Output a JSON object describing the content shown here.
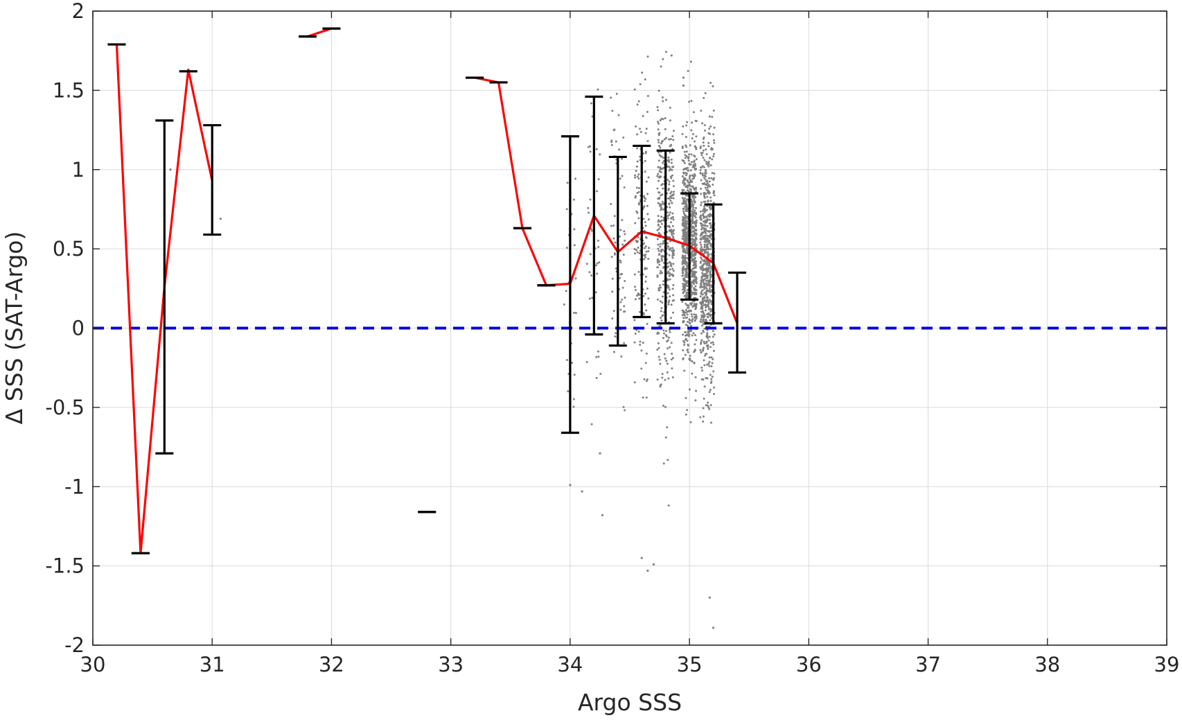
{
  "chart_data": {
    "type": "scatter",
    "xlabel": "Argo SSS",
    "ylabel": "Δ SSS (SAT-Argo)",
    "xlim": [
      30,
      39
    ],
    "ylim": [
      -2,
      2
    ],
    "xticks": [
      30,
      31,
      32,
      33,
      34,
      35,
      36,
      37,
      38,
      39
    ],
    "yticks": [
      -2,
      -1.5,
      -1,
      -0.5,
      0,
      0.5,
      1,
      1.5,
      2
    ],
    "xtick_labels": [
      "30",
      "31",
      "32",
      "33",
      "34",
      "35",
      "36",
      "37",
      "38",
      "39"
    ],
    "ytick_labels": [
      "-2",
      "-1.5",
      "-1",
      "-0.5",
      "0",
      "0.5",
      "1",
      "1.5",
      "2"
    ],
    "grid": true,
    "reference_line": {
      "y": 0,
      "style": "dashed",
      "color": "#0000dd"
    },
    "colors": {
      "mean_line": "#ff0000",
      "errorbar": "#000000",
      "scatter": "#808080",
      "grid": "#d9d9d9",
      "axes": "#262626"
    },
    "mean_line": [
      {
        "x": 30.2,
        "y": 1.79
      },
      {
        "x": 30.4,
        "y": -1.42
      },
      {
        "x": 30.6,
        "y": 0.26
      },
      {
        "x": 30.8,
        "y": 1.63
      },
      {
        "x": 31.0,
        "y": 0.93
      },
      null,
      {
        "x": 31.8,
        "y": 1.84
      },
      {
        "x": 32.0,
        "y": 1.89
      },
      null,
      {
        "x": 33.2,
        "y": 1.58
      },
      {
        "x": 33.4,
        "y": 1.55
      },
      {
        "x": 33.6,
        "y": 0.63
      },
      {
        "x": 33.8,
        "y": 0.27
      },
      {
        "x": 34.0,
        "y": 0.28
      },
      {
        "x": 34.2,
        "y": 0.71
      },
      {
        "x": 34.4,
        "y": 0.48
      },
      {
        "x": 34.6,
        "y": 0.61
      },
      {
        "x": 34.8,
        "y": 0.57
      },
      {
        "x": 35.0,
        "y": 0.52
      },
      {
        "x": 35.2,
        "y": 0.41
      },
      {
        "x": 35.4,
        "y": 0.03
      }
    ],
    "error_bars": [
      {
        "x": 30.2,
        "low": 1.79,
        "high": 1.79
      },
      {
        "x": 30.4,
        "low": -1.42,
        "high": -1.42
      },
      {
        "x": 30.6,
        "low": -0.79,
        "high": 1.31
      },
      {
        "x": 30.8,
        "low": 1.62,
        "high": 1.62
      },
      {
        "x": 31.0,
        "low": 0.59,
        "high": 1.28
      },
      {
        "x": 31.8,
        "low": 1.84,
        "high": 1.84
      },
      {
        "x": 32.0,
        "low": 1.89,
        "high": 1.89
      },
      {
        "x": 32.8,
        "low": -1.16,
        "high": -1.16
      },
      {
        "x": 33.2,
        "low": 1.58,
        "high": 1.58
      },
      {
        "x": 33.4,
        "low": 1.55,
        "high": 1.55
      },
      {
        "x": 33.6,
        "low": 0.63,
        "high": 0.63
      },
      {
        "x": 33.8,
        "low": 0.27,
        "high": 0.27
      },
      {
        "x": 34.0,
        "low": -0.66,
        "high": 1.21
      },
      {
        "x": 34.2,
        "low": -0.04,
        "high": 1.46
      },
      {
        "x": 34.4,
        "low": -0.11,
        "high": 1.08
      },
      {
        "x": 34.6,
        "low": 0.07,
        "high": 1.15
      },
      {
        "x": 34.8,
        "low": 0.03,
        "high": 1.12
      },
      {
        "x": 35.0,
        "low": 0.18,
        "high": 0.85
      },
      {
        "x": 35.2,
        "low": 0.03,
        "high": 0.78
      },
      {
        "x": 35.4,
        "low": -0.28,
        "high": 0.35
      }
    ],
    "scatter_summary": {
      "description_x_range": [
        33.9,
        35.3
      ],
      "clusters": [
        {
          "x_center": 34.0,
          "x_spread": 0.05,
          "y_mean": 0.3,
          "y_sd": 0.5,
          "n": 25
        },
        {
          "x_center": 34.2,
          "x_spread": 0.06,
          "y_mean": 0.6,
          "y_sd": 0.5,
          "n": 40
        },
        {
          "x_center": 34.4,
          "x_spread": 0.06,
          "y_mean": 0.5,
          "y_sd": 0.45,
          "n": 70
        },
        {
          "x_center": 34.6,
          "x_spread": 0.06,
          "y_mean": 0.6,
          "y_sd": 0.45,
          "n": 160
        },
        {
          "x_center": 34.8,
          "x_spread": 0.07,
          "y_mean": 0.57,
          "y_sd": 0.42,
          "n": 420
        },
        {
          "x_center": 35.0,
          "x_spread": 0.06,
          "y_mean": 0.52,
          "y_sd": 0.33,
          "n": 900
        },
        {
          "x_center": 35.15,
          "x_spread": 0.06,
          "y_mean": 0.42,
          "y_sd": 0.38,
          "n": 700
        }
      ],
      "isolated_points": [
        {
          "x": 30.65,
          "y": 1.0
        },
        {
          "x": 30.6,
          "y": -0.49
        },
        {
          "x": 31.07,
          "y": 0.69
        },
        {
          "x": 34.85,
          "y": 1.72
        },
        {
          "x": 34.95,
          "y": 1.58
        },
        {
          "x": 34.95,
          "y": 1.53
        },
        {
          "x": 35.2,
          "y": -1.89
        },
        {
          "x": 35.17,
          "y": -1.7
        },
        {
          "x": 34.7,
          "y": -1.49
        },
        {
          "x": 34.6,
          "y": -1.45
        },
        {
          "x": 34.65,
          "y": -1.53
        },
        {
          "x": 34.27,
          "y": -1.18
        },
        {
          "x": 34.0,
          "y": -0.99
        },
        {
          "x": 34.1,
          "y": -1.03
        },
        {
          "x": 34.25,
          "y": -0.79
        }
      ]
    }
  }
}
